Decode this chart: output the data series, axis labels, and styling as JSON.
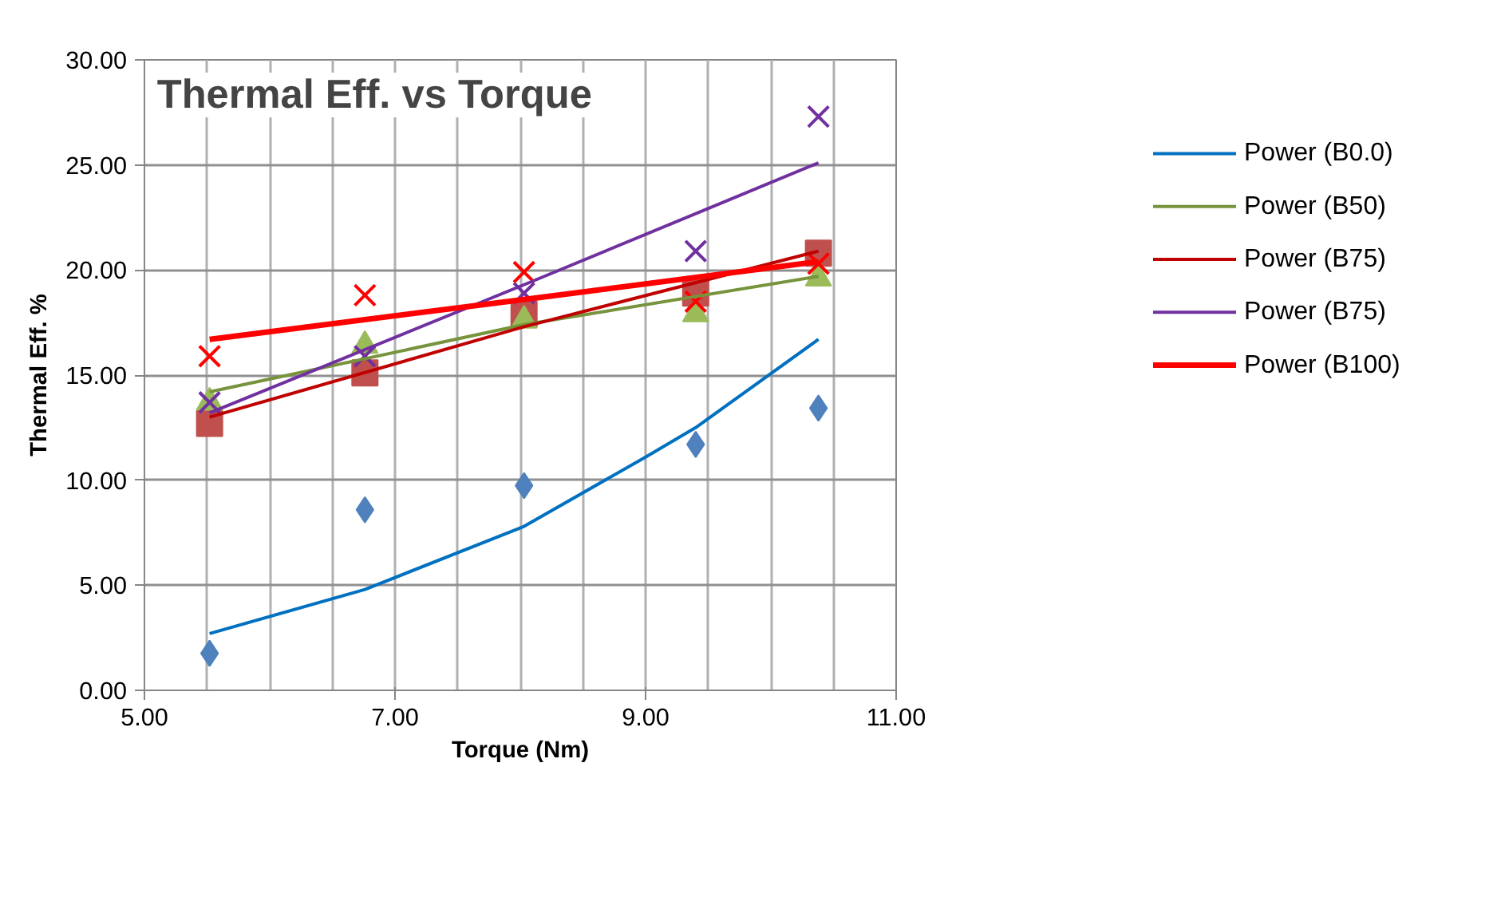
{
  "chart_data": {
    "type": "scatter",
    "title": "Thermal Eff. vs Torque",
    "xlabel": "Torque (Nm)",
    "ylabel": "Thermal Eff. %",
    "x": [
      5.52,
      6.76,
      8.03,
      9.4,
      10.38
    ],
    "series": [
      {
        "marker": "diamond",
        "color": "#4f81bd",
        "values": [
          1.76,
          8.59,
          9.74,
          11.7,
          13.43
        ]
      },
      {
        "marker": "square",
        "color": "#c0504d",
        "values": [
          12.7,
          15.1,
          17.9,
          18.9,
          20.8
        ]
      },
      {
        "marker": "triangle",
        "color": "#9bbb59",
        "values": [
          13.7,
          16.4,
          17.6,
          17.9,
          19.6
        ]
      },
      {
        "marker": "cross",
        "color": "#7030a0",
        "values": [
          13.7,
          15.9,
          18.9,
          20.9,
          27.3
        ]
      },
      {
        "marker": "cross",
        "color": "#ff0000",
        "values": [
          15.9,
          18.8,
          19.9,
          18.5,
          20.3
        ]
      },
      {
        "type": "line",
        "name": "Power (B0.0)",
        "color": "#0070c0",
        "x": [
          5.52,
          6.76,
          8.03,
          9.0,
          9.4,
          10.38
        ],
        "values": [
          2.7,
          4.8,
          7.8,
          11.1,
          12.5,
          16.7
        ]
      },
      {
        "type": "line",
        "name": "Power (B50)",
        "color": "#77933c",
        "x": [
          5.52,
          8.03,
          10.38
        ],
        "values": [
          14.2,
          17.4,
          19.7
        ]
      },
      {
        "type": "line",
        "name": "Power (B75)",
        "color": "#c00000",
        "x": [
          5.52,
          8.03,
          10.38
        ],
        "values": [
          13.0,
          17.3,
          20.9
        ]
      },
      {
        "type": "line",
        "name": "Power (B75)",
        "color": "#7030a0",
        "x": [
          5.52,
          8.03,
          10.38
        ],
        "values": [
          13.2,
          19.3,
          25.1
        ]
      },
      {
        "type": "line",
        "name": "Power (B100)",
        "color": "#ff0000",
        "x": [
          5.52,
          8.03,
          10.38
        ],
        "values": [
          16.7,
          18.6,
          20.4
        ]
      }
    ],
    "xlim": [
      5,
      11
    ],
    "xticks": [
      {
        "value": 5,
        "label": "5.00"
      },
      {
        "value": 5.5,
        "label": null
      },
      {
        "value": 6,
        "label": null
      },
      {
        "value": 6.5,
        "label": null
      },
      {
        "value": 7,
        "label": "7.00"
      },
      {
        "value": 7.5,
        "label": null
      },
      {
        "value": 8,
        "label": null
      },
      {
        "value": 8.5,
        "label": null
      },
      {
        "value": 9,
        "label": "9.00"
      },
      {
        "value": 9.5,
        "label": null
      },
      {
        "value": 10,
        "label": null
      },
      {
        "value": 10.5,
        "label": null
      },
      {
        "value": 11,
        "label": "11.00"
      }
    ],
    "ylim": [
      0,
      30
    ],
    "yticks": [
      {
        "value": 0,
        "label": "0.00"
      },
      {
        "value": 5,
        "label": "5.00"
      },
      {
        "value": 10,
        "label": "10.00"
      },
      {
        "value": 15,
        "label": "15.00"
      },
      {
        "value": 20,
        "label": "20.00"
      },
      {
        "value": 25,
        "label": "25.00"
      },
      {
        "value": 30,
        "label": "30.00"
      }
    ],
    "grid": true,
    "legend": "right"
  }
}
